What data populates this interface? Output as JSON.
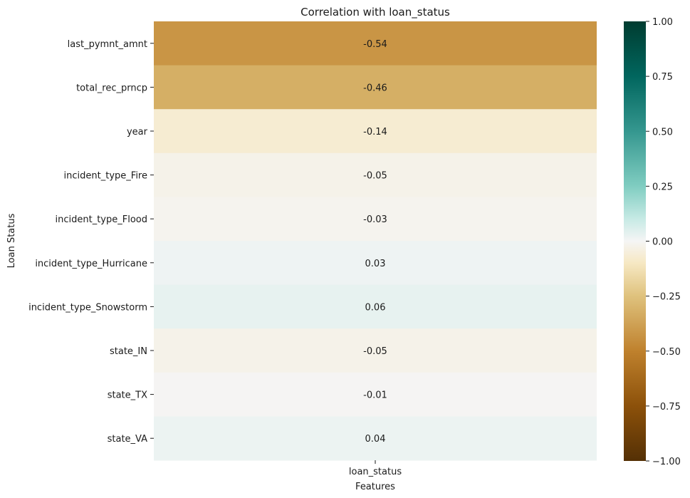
{
  "chart_data": {
    "type": "heatmap",
    "title": "Correlation with loan_status",
    "xlabel": "Features",
    "ylabel": "Loan Status",
    "columns": [
      "loan_status"
    ],
    "rows": [
      "last_pymnt_amnt",
      "total_rec_prncp",
      "year",
      "incident_type_Fire",
      "incident_type_Flood",
      "incident_type_Hurricane",
      "incident_type_Snowstorm",
      "state_IN",
      "state_TX",
      "state_VA"
    ],
    "values": [
      -0.54,
      -0.46,
      -0.14,
      -0.05,
      -0.03,
      0.03,
      0.06,
      -0.05,
      -0.01,
      0.04
    ],
    "value_labels": [
      "-0.54",
      "-0.46",
      "-0.14",
      "-0.05",
      "-0.03",
      "0.03",
      "0.06",
      "-0.05",
      "-0.01",
      "0.04"
    ],
    "colormap": "BrBG",
    "vmin": -1.0,
    "vmax": 1.0,
    "colorbar_ticks": [
      1.0,
      0.75,
      0.5,
      0.25,
      0.0,
      -0.25,
      -0.5,
      -0.75,
      -1.0
    ],
    "colorbar_tick_labels": [
      "1.00",
      "0.75",
      "0.50",
      "0.25",
      "0.00",
      "−0.25",
      "−0.50",
      "−0.75",
      "−1.00"
    ]
  }
}
